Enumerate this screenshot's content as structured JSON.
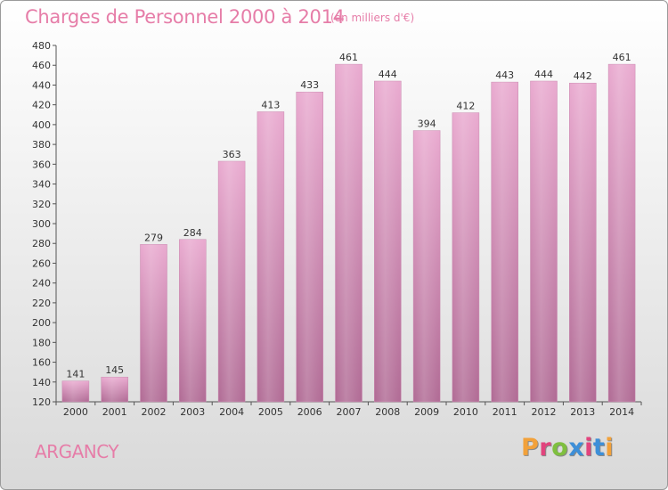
{
  "header": {
    "title": "Charges de Personnel 2000 à 2014",
    "subtitle": "(en milliers d'€)"
  },
  "footer": {
    "commune": "ARGANCY",
    "logo_text": "Proxiti",
    "logo_colors": [
      "#f2a13a",
      "#e2447d",
      "#7fbf3f",
      "#3d8fd8",
      "#e2447d",
      "#3d8fd8",
      "#f2a13a"
    ]
  },
  "colors": {
    "title": "#e67da8",
    "bar_top": "#e9a9cf",
    "bar_bottom": "#b06a94"
  },
  "chart_data": {
    "type": "bar",
    "title": "Charges de Personnel 2000 à 2014",
    "subtitle": "(en milliers d'€)",
    "categories": [
      "2000",
      "2001",
      "2002",
      "2003",
      "2004",
      "2005",
      "2006",
      "2007",
      "2008",
      "2009",
      "2010",
      "2011",
      "2012",
      "2013",
      "2014"
    ],
    "values": [
      141,
      145,
      279,
      284,
      363,
      413,
      433,
      461,
      444,
      394,
      412,
      443,
      444,
      442,
      461
    ],
    "ylim": [
      120,
      480
    ],
    "ytick_step": 20,
    "grid": false,
    "legend": "none",
    "data_labels": true
  }
}
